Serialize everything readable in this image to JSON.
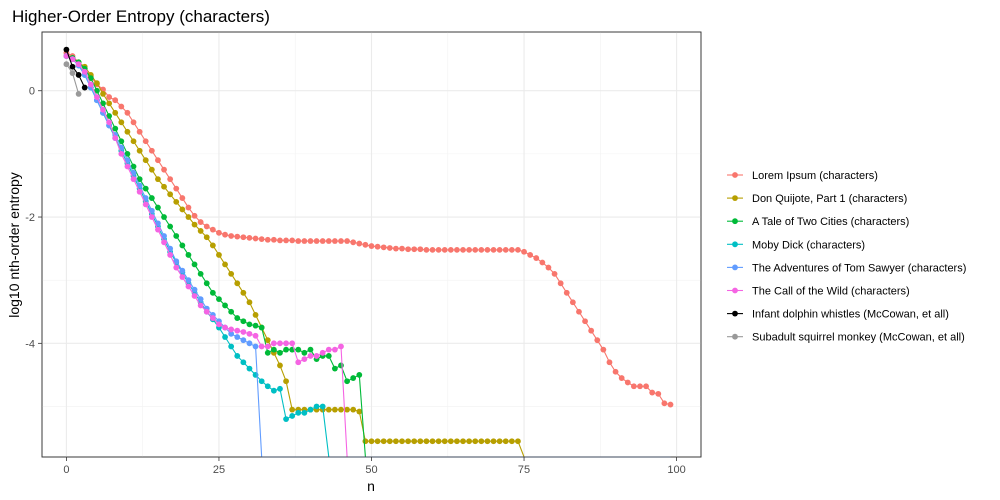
{
  "chart_data": {
    "type": "line",
    "title": "Higher-Order Entropy (characters)",
    "xlabel": "n",
    "ylabel": "log10 nth-order entropy",
    "xlim": [
      -4,
      104
    ],
    "ylim": [
      -5.8,
      0.93
    ],
    "x_ticks": [
      0,
      25,
      50,
      75,
      100
    ],
    "x_tick_labels": [
      "0",
      "25",
      "50",
      "75",
      "100"
    ],
    "y_ticks": [
      0,
      -2,
      -4
    ],
    "y_tick_labels": [
      "0",
      "-2",
      "-4"
    ],
    "grid": true,
    "legend_position": "right",
    "series": [
      {
        "name": "Lorem Ipsum (characters)",
        "color": "#F8766D",
        "x": [
          0,
          1,
          2,
          3,
          4,
          5,
          6,
          7,
          8,
          9,
          10,
          11,
          12,
          13,
          14,
          15,
          16,
          17,
          18,
          19,
          20,
          21,
          22,
          23,
          24,
          25,
          26,
          27,
          28,
          29,
          30,
          31,
          32,
          33,
          34,
          35,
          36,
          37,
          38,
          39,
          40,
          41,
          42,
          43,
          44,
          45,
          46,
          47,
          48,
          49,
          50,
          51,
          52,
          53,
          54,
          55,
          56,
          57,
          58,
          59,
          60,
          61,
          62,
          63,
          64,
          65,
          66,
          67,
          68,
          69,
          70,
          71,
          72,
          73,
          74,
          75,
          76,
          77,
          78,
          79,
          80,
          81,
          82,
          83,
          84,
          85,
          86,
          87,
          88,
          89,
          90,
          91,
          92,
          93,
          94,
          95,
          96,
          97,
          98,
          99
        ],
        "values": [
          0.6,
          0.55,
          0.45,
          0.35,
          0.22,
          0.1,
          0.02,
          -0.1,
          -0.15,
          -0.25,
          -0.35,
          -0.5,
          -0.65,
          -0.8,
          -0.95,
          -1.1,
          -1.25,
          -1.4,
          -1.55,
          -1.7,
          -1.85,
          -1.98,
          -2.08,
          -2.15,
          -2.2,
          -2.25,
          -2.28,
          -2.3,
          -2.31,
          -2.32,
          -2.33,
          -2.34,
          -2.35,
          -2.36,
          -2.36,
          -2.37,
          -2.37,
          -2.37,
          -2.38,
          -2.38,
          -2.38,
          -2.38,
          -2.38,
          -2.38,
          -2.38,
          -2.38,
          -2.38,
          -2.4,
          -2.42,
          -2.44,
          -2.46,
          -2.47,
          -2.48,
          -2.49,
          -2.5,
          -2.5,
          -2.51,
          -2.51,
          -2.51,
          -2.52,
          -2.52,
          -2.52,
          -2.52,
          -2.52,
          -2.52,
          -2.52,
          -2.52,
          -2.52,
          -2.52,
          -2.52,
          -2.52,
          -2.52,
          -2.52,
          -2.52,
          -2.52,
          -2.55,
          -2.6,
          -2.65,
          -2.72,
          -2.8,
          -2.9,
          -3.05,
          -3.2,
          -3.35,
          -3.5,
          -3.65,
          -3.8,
          -3.95,
          -4.1,
          -4.3,
          -4.45,
          -4.55,
          -4.62,
          -4.68,
          -4.68,
          -4.68,
          -4.78,
          -4.8,
          -4.95,
          -4.97
        ]
      },
      {
        "name": "Don Quijote, Part 1 (characters)",
        "color": "#B79F00",
        "x": [
          0,
          1,
          2,
          3,
          4,
          5,
          6,
          7,
          8,
          9,
          10,
          11,
          12,
          13,
          14,
          15,
          16,
          17,
          18,
          19,
          20,
          21,
          22,
          23,
          24,
          25,
          26,
          27,
          28,
          29,
          30,
          31,
          32,
          33,
          34,
          35,
          36,
          37,
          38,
          39,
          40,
          41,
          42,
          43,
          44,
          45,
          46,
          47,
          48,
          49,
          50,
          51,
          52,
          53,
          54,
          55,
          56,
          57,
          58,
          59,
          60,
          61,
          62,
          63,
          64,
          65,
          66,
          67,
          68,
          69,
          70,
          71,
          72,
          73,
          74,
          75,
          76,
          77,
          78,
          79,
          80,
          81,
          82,
          83,
          84,
          85,
          86,
          87,
          88,
          89,
          90,
          91,
          92,
          93,
          94,
          95,
          96,
          97,
          98,
          99
        ],
        "values": [
          0.55,
          0.5,
          0.45,
          0.38,
          0.25,
          0.12,
          -0.05,
          -0.2,
          -0.35,
          -0.5,
          -0.65,
          -0.8,
          -0.95,
          -1.1,
          -1.25,
          -1.4,
          -1.52,
          -1.64,
          -1.76,
          -1.88,
          -2.0,
          -2.12,
          -2.22,
          -2.32,
          -2.45,
          -2.6,
          -2.75,
          -2.9,
          -3.05,
          -3.2,
          -3.35,
          -3.55,
          -3.75,
          -3.95,
          -4.15,
          -4.35,
          -4.6,
          -5.05,
          -5.05,
          -5.05,
          -5.05,
          -5.05,
          -5.05,
          -5.05,
          -5.05,
          -5.05,
          -5.05,
          -5.05,
          -5.08,
          -5.55,
          -5.55,
          -5.55,
          -5.55,
          -5.55,
          -5.55,
          -5.55,
          -5.55,
          -5.55,
          -5.55,
          -5.55,
          -5.55,
          -5.55,
          -5.55,
          -5.55,
          -5.55,
          -5.55,
          -5.55,
          -5.55,
          -5.55,
          -5.55,
          -5.55,
          -5.55,
          -5.55,
          -5.55,
          -5.55,
          -5.8,
          -5.8,
          -5.8,
          -5.8,
          -5.8,
          -5.8,
          -5.8,
          -5.8,
          -5.8,
          -5.8,
          -5.8,
          -5.8,
          -5.8,
          -5.8,
          -5.8,
          -5.8,
          -5.8,
          -5.8,
          -5.8,
          -5.8,
          -5.8,
          -5.8,
          -5.8,
          -5.8,
          -5.8
        ]
      },
      {
        "name": "A Tale of Two Cities (characters)",
        "color": "#00BA38",
        "x": [
          0,
          1,
          2,
          3,
          4,
          5,
          6,
          7,
          8,
          9,
          10,
          11,
          12,
          13,
          14,
          15,
          16,
          17,
          18,
          19,
          20,
          21,
          22,
          23,
          24,
          25,
          26,
          27,
          28,
          29,
          30,
          31,
          32,
          33,
          34,
          35,
          36,
          37,
          38,
          39,
          40,
          41,
          42,
          43,
          44,
          45,
          46,
          47,
          48,
          49
        ],
        "values": [
          0.55,
          0.52,
          0.45,
          0.35,
          0.2,
          0.0,
          -0.2,
          -0.4,
          -0.6,
          -0.8,
          -1.0,
          -1.2,
          -1.4,
          -1.55,
          -1.7,
          -1.85,
          -2.0,
          -2.15,
          -2.3,
          -2.45,
          -2.6,
          -2.75,
          -2.9,
          -3.05,
          -3.2,
          -3.3,
          -3.4,
          -3.5,
          -3.6,
          -3.65,
          -3.7,
          -3.72,
          -3.75,
          -4.15,
          -4.1,
          -4.15,
          -4.1,
          -4.1,
          -4.1,
          -4.15,
          -4.1,
          -4.25,
          -4.2,
          -4.2,
          -4.4,
          -4.35,
          -4.6,
          -4.55,
          -4.5,
          -5.8
        ]
      },
      {
        "name": "Moby Dick (characters)",
        "color": "#00BFC4",
        "x": [
          0,
          1,
          2,
          3,
          4,
          5,
          6,
          7,
          8,
          9,
          10,
          11,
          12,
          13,
          14,
          15,
          16,
          17,
          18,
          19,
          20,
          21,
          22,
          23,
          24,
          25,
          26,
          27,
          28,
          29,
          30,
          31,
          32,
          33,
          34,
          35,
          36,
          37,
          38,
          39,
          40,
          41,
          42,
          43,
          44,
          45,
          46,
          47,
          48,
          49,
          50,
          51,
          52,
          53,
          54,
          55,
          56,
          57,
          58,
          59,
          60,
          61,
          62,
          63,
          64,
          65,
          66,
          67,
          68,
          69,
          70,
          71,
          72,
          73,
          74,
          75,
          76,
          77,
          78,
          79,
          80,
          81,
          82,
          83,
          84,
          85,
          86,
          87,
          88,
          89,
          90,
          91,
          92,
          93,
          94,
          95,
          96,
          97,
          98,
          99
        ],
        "values": [
          0.55,
          0.5,
          0.4,
          0.25,
          0.05,
          -0.15,
          -0.35,
          -0.55,
          -0.75,
          -0.95,
          -1.15,
          -1.35,
          -1.55,
          -1.75,
          -1.95,
          -2.15,
          -2.35,
          -2.55,
          -2.72,
          -2.88,
          -3.05,
          -3.2,
          -3.35,
          -3.5,
          -3.62,
          -3.75,
          -3.9,
          -4.05,
          -4.2,
          -4.3,
          -4.4,
          -4.5,
          -4.6,
          -4.68,
          -4.75,
          -4.72,
          -5.2,
          -5.15,
          -5.1,
          -5.1,
          -5.05,
          -5.0,
          -5.0,
          -5.8,
          -5.8,
          -5.8,
          -5.8,
          -5.8,
          -5.8,
          -5.8,
          -5.8,
          -5.8,
          -5.8,
          -5.8,
          -5.8,
          -5.8,
          -5.8,
          -5.8,
          -5.8,
          -5.8,
          -5.8,
          -5.8,
          -5.8,
          -5.8,
          -5.8,
          -5.8,
          -5.8,
          -5.8,
          -5.8,
          -5.8,
          -5.8,
          -5.8,
          -5.8,
          -5.8,
          -5.8,
          -5.8,
          -5.8,
          -5.8,
          -5.8,
          -5.8,
          -5.8,
          -5.8,
          -5.8,
          -5.8,
          -5.8,
          -5.8,
          -5.8,
          -5.8,
          -5.8,
          -5.8,
          -5.8,
          -5.8,
          -5.8,
          -5.8,
          -5.8,
          -5.8,
          -5.8,
          -5.8,
          -5.8,
          -5.8
        ]
      },
      {
        "name": "The Adventures of Tom Sawyer (characters)",
        "color": "#619CFF",
        "x": [
          0,
          1,
          2,
          3,
          4,
          5,
          6,
          7,
          8,
          9,
          10,
          11,
          12,
          13,
          14,
          15,
          16,
          17,
          18,
          19,
          20,
          21,
          22,
          23,
          24,
          25,
          26,
          27,
          28,
          29,
          30,
          31,
          32,
          33,
          34,
          35,
          36,
          37,
          38,
          39,
          40,
          41,
          42,
          43,
          44,
          45,
          46,
          47,
          48,
          49,
          50,
          51,
          52,
          53,
          54,
          55,
          56,
          57,
          58,
          59,
          60,
          61,
          62,
          63,
          64,
          65,
          66,
          67,
          68,
          69,
          70,
          71,
          72,
          73,
          74,
          75,
          76,
          77,
          78,
          79,
          80,
          81,
          82,
          83,
          84,
          85,
          86,
          87,
          88,
          89,
          90,
          91,
          92,
          93,
          94,
          95,
          96,
          97,
          98,
          99
        ],
        "values": [
          0.55,
          0.5,
          0.4,
          0.25,
          0.05,
          -0.15,
          -0.35,
          -0.55,
          -0.7,
          -0.9,
          -1.1,
          -1.3,
          -1.5,
          -1.7,
          -1.9,
          -2.1,
          -2.3,
          -2.5,
          -2.7,
          -2.85,
          -3.0,
          -3.15,
          -3.3,
          -3.45,
          -3.55,
          -3.65,
          -3.75,
          -3.85,
          -3.9,
          -3.95,
          -4.0,
          -4.05,
          -5.8,
          -5.8,
          -5.8,
          -5.8,
          -5.8,
          -5.8,
          -5.8,
          -5.8,
          -5.8,
          -5.8,
          -5.8,
          -5.8,
          -5.8,
          -5.8,
          -5.8,
          -5.8,
          -5.8,
          -5.8,
          -5.8,
          -5.8,
          -5.8,
          -5.8,
          -5.8,
          -5.8,
          -5.8,
          -5.8,
          -5.8,
          -5.8,
          -5.8,
          -5.8,
          -5.8,
          -5.8,
          -5.8,
          -5.8,
          -5.8,
          -5.8,
          -5.8,
          -5.8,
          -5.8,
          -5.8,
          -5.8,
          -5.8,
          -5.8,
          -5.8,
          -5.8,
          -5.8,
          -5.8,
          -5.8,
          -5.8,
          -5.8,
          -5.8,
          -5.8,
          -5.8,
          -5.8,
          -5.8,
          -5.8,
          -5.8,
          -5.8,
          -5.8,
          -5.8,
          -5.8,
          -5.8,
          -5.8,
          -5.8,
          -5.8,
          -5.8,
          -5.8,
          -5.8
        ]
      },
      {
        "name": "The Call of the Wild (characters)",
        "color": "#F564E3",
        "x": [
          0,
          1,
          2,
          3,
          4,
          5,
          6,
          7,
          8,
          9,
          10,
          11,
          12,
          13,
          14,
          15,
          16,
          17,
          18,
          19,
          20,
          21,
          22,
          23,
          24,
          25,
          26,
          27,
          28,
          29,
          30,
          31,
          32,
          33,
          34,
          35,
          36,
          37,
          38,
          39,
          40,
          41,
          42,
          43,
          44,
          45,
          46
        ],
        "values": [
          0.55,
          0.5,
          0.42,
          0.3,
          0.1,
          -0.1,
          -0.3,
          -0.5,
          -0.75,
          -1.0,
          -1.2,
          -1.4,
          -1.6,
          -1.8,
          -2.0,
          -2.2,
          -2.4,
          -2.6,
          -2.8,
          -2.95,
          -3.1,
          -3.25,
          -3.4,
          -3.5,
          -3.6,
          -3.7,
          -3.75,
          -3.78,
          -3.8,
          -3.82,
          -3.85,
          -3.88,
          -4.05,
          -4.05,
          -4.0,
          -4.0,
          -4.0,
          -4.0,
          -4.3,
          -4.25,
          -4.2,
          -4.2,
          -4.15,
          -4.1,
          -4.1,
          -4.05,
          -5.8
        ]
      },
      {
        "name": "Infant dolphin whistles (McCowan, et all)",
        "color": "#000000",
        "x": [
          0,
          1,
          2,
          3
        ],
        "values": [
          0.65,
          0.38,
          0.25,
          0.05
        ]
      },
      {
        "name": "Subadult squirrel monkey (McCowan, et all)",
        "color": "#999999",
        "x": [
          0,
          1,
          2
        ],
        "values": [
          0.42,
          0.28,
          -0.05
        ]
      }
    ]
  }
}
